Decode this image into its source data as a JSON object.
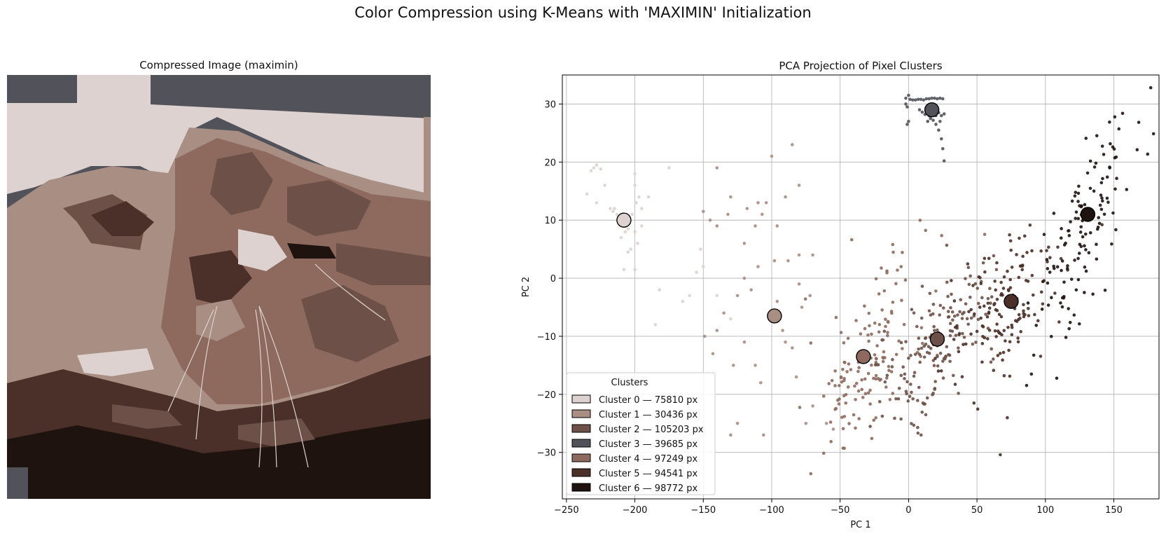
{
  "suptitle": "Color Compression using K-Means with 'MAXIMIN' Initialization",
  "image_panel": {
    "title": "Compressed Image (maximin)",
    "subject_icon": "cat-face-photo-posterized"
  },
  "chart_data": {
    "type": "scatter",
    "title": "PCA Projection of Pixel Clusters",
    "xlabel": "PC 1",
    "ylabel": "PC 2",
    "xlim": [
      -253,
      183
    ],
    "ylim": [
      -38,
      35
    ],
    "xticks": [
      -250,
      -200,
      -150,
      -100,
      -50,
      0,
      50,
      100,
      150
    ],
    "yticks": [
      -30,
      -20,
      -10,
      0,
      10,
      20,
      30
    ],
    "grid": true,
    "legend": {
      "title": "Clusters",
      "placement": "lower-left"
    },
    "clusters": [
      {
        "id": 0,
        "label": "Cluster 0 — 75810 px",
        "pixels": 75810,
        "color": "#ddd2d0",
        "centroid": [
          -208,
          10
        ]
      },
      {
        "id": 1,
        "label": "Cluster 1 — 30436 px",
        "pixels": 30436,
        "color": "#a98e84",
        "centroid": [
          -98,
          -6.5
        ]
      },
      {
        "id": 2,
        "label": "Cluster 2 — 105203 px",
        "pixels": 105203,
        "color": "#6d5148",
        "centroid": [
          21,
          -10.5
        ]
      },
      {
        "id": 3,
        "label": "Cluster 3 — 39685 px",
        "pixels": 39685,
        "color": "#52525b",
        "centroid": [
          17,
          29
        ]
      },
      {
        "id": 4,
        "label": "Cluster 4 — 97249 px",
        "pixels": 97249,
        "color": "#8d6a5d",
        "centroid": [
          -33,
          -13.5
        ]
      },
      {
        "id": 5,
        "label": "Cluster 5 — 94541 px",
        "pixels": 94541,
        "color": "#4a3028",
        "centroid": [
          75,
          -4
        ]
      },
      {
        "id": 6,
        "label": "Cluster 6 — 98772 px",
        "pixels": 98772,
        "color": "#1e130f",
        "centroid": [
          131,
          11
        ]
      }
    ],
    "sample_points": [
      {
        "c": 0,
        "pts": [
          [
            -230,
            19
          ],
          [
            -228,
            19.5
          ],
          [
            -225,
            18.8
          ],
          [
            -232,
            18.5
          ],
          [
            -222,
            16
          ],
          [
            -218,
            12
          ],
          [
            -216,
            11.5
          ],
          [
            -213,
            11
          ],
          [
            -210,
            9
          ],
          [
            -207,
            8
          ],
          [
            -205,
            8.5
          ],
          [
            -204,
            9.5
          ],
          [
            -200,
            8
          ],
          [
            -202,
            11
          ],
          [
            -199,
            13
          ],
          [
            -197,
            14
          ],
          [
            -200,
            16
          ],
          [
            -200,
            18
          ],
          [
            -198,
            6
          ],
          [
            -203,
            5
          ],
          [
            -205,
            4.5
          ],
          [
            -210,
            7
          ],
          [
            -212,
            10
          ],
          [
            -215,
            12
          ],
          [
            -208,
            1.5
          ],
          [
            -200,
            1.5
          ],
          [
            -195,
            9
          ],
          [
            -195,
            12
          ],
          [
            -190,
            14
          ],
          [
            -235,
            14.5
          ],
          [
            -228,
            13
          ],
          [
            -175,
            19
          ],
          [
            -185,
            -8
          ],
          [
            -152,
            5
          ],
          [
            -150,
            2
          ],
          [
            -155,
            1
          ],
          [
            -165,
            -4
          ],
          [
            -182,
            -2
          ],
          [
            -160,
            -3
          ],
          [
            -140,
            -3
          ],
          [
            -130,
            -7
          ]
        ]
      },
      {
        "c": 1,
        "pts": [
          [
            -150,
            11.5
          ],
          [
            -145,
            10
          ],
          [
            -140,
            9
          ],
          [
            -132,
            11
          ],
          [
            -130,
            14
          ],
          [
            -118,
            12
          ],
          [
            -110,
            13
          ],
          [
            -107,
            11
          ],
          [
            -104,
            13
          ],
          [
            -112,
            9
          ],
          [
            -120,
            6
          ],
          [
            -96,
            9
          ],
          [
            -98,
            3
          ],
          [
            -110,
            2
          ],
          [
            -120,
            0
          ],
          [
            -125,
            -3
          ],
          [
            -135,
            -6
          ],
          [
            -140,
            -9
          ],
          [
            -128,
            -15
          ],
          [
            -120,
            -11
          ],
          [
            -112,
            -15
          ],
          [
            -108,
            -18
          ],
          [
            -106,
            -27
          ],
          [
            -96,
            -4
          ],
          [
            -92,
            -9
          ],
          [
            -90,
            -11
          ],
          [
            -85,
            -12
          ],
          [
            -82,
            -17
          ],
          [
            -75,
            -25
          ],
          [
            -70,
            -22
          ],
          [
            -78,
            -5
          ],
          [
            -72,
            -3
          ],
          [
            -80,
            -1
          ],
          [
            -88,
            3
          ],
          [
            -80,
            4
          ],
          [
            -70,
            4
          ],
          [
            -80,
            16
          ],
          [
            -90,
            14
          ],
          [
            -100,
            21
          ],
          [
            -115,
            -2
          ],
          [
            -60,
            -25
          ],
          [
            -55,
            -26
          ],
          [
            -125,
            -25
          ],
          [
            -130,
            -27
          ],
          [
            -143,
            -13
          ],
          [
            -149,
            -10
          ],
          [
            -140,
            19
          ],
          [
            -85,
            23
          ]
        ]
      },
      {
        "c": 3,
        "pts": [
          [
            -2,
            31
          ],
          [
            -2,
            30
          ],
          [
            -1,
            29.5
          ],
          [
            0,
            31.5
          ],
          [
            1,
            30.8
          ],
          [
            3,
            30.7
          ],
          [
            5,
            30.7
          ],
          [
            7,
            30.8
          ],
          [
            9,
            30.8
          ],
          [
            11,
            30.7
          ],
          [
            13,
            30.9
          ],
          [
            15,
            30.9
          ],
          [
            17,
            31
          ],
          [
            19,
            31
          ],
          [
            21,
            30.9
          ],
          [
            23,
            31
          ],
          [
            25,
            30.9
          ],
          [
            14,
            29
          ],
          [
            15,
            28
          ],
          [
            16,
            27.5
          ],
          [
            18,
            27.2
          ],
          [
            20,
            28
          ],
          [
            22,
            28.5
          ],
          [
            24,
            28
          ],
          [
            26,
            28.3
          ],
          [
            23,
            27
          ],
          [
            20,
            26.5
          ],
          [
            22,
            25.5
          ],
          [
            24,
            24
          ],
          [
            14,
            27
          ],
          [
            0,
            27
          ],
          [
            -1,
            26.5
          ],
          [
            26,
            20.2
          ],
          [
            25,
            22.3
          ],
          [
            8,
            29
          ],
          [
            10,
            28.6
          ],
          [
            12,
            28.2
          ]
        ]
      }
    ]
  }
}
